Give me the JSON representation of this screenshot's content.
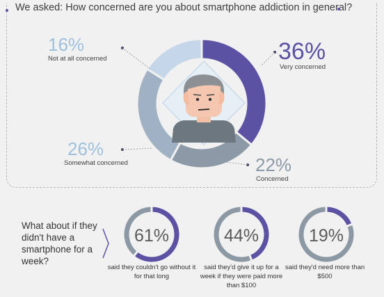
{
  "question": "We asked: How concerned are you about smartphone addiction in general?",
  "colors": {
    "very": "#5b52a4",
    "concerned": "#8b9aa6",
    "somewhat": "#9fb1c2",
    "not_at_all": "#c4d6e8",
    "mini_rest": "#8c99a4",
    "text_light": "#9fc0dc"
  },
  "labels": {
    "very": {
      "pct": "36%",
      "text": "Very concerned"
    },
    "concerned": {
      "pct": "22%",
      "text": "Concerned"
    },
    "somewhat": {
      "pct": "26%",
      "text": "Somewhat concerned"
    },
    "not_at_all": {
      "pct": "16%",
      "text": "Not at all concerned"
    }
  },
  "followup": {
    "question": "What about if they didn't have a smartphone for a week?",
    "items": [
      {
        "pct": "61%",
        "caption": "said they couldn't go without it for that long"
      },
      {
        "pct": "44%",
        "caption": "said they'd give it up for a week if they were paid more than $100"
      },
      {
        "pct": "19%",
        "caption": "said they'd need more than $500"
      }
    ]
  },
  "chart_data": [
    {
      "type": "pie",
      "title": "We asked: How concerned are you about smartphone addiction in general?",
      "categories": [
        "Very concerned",
        "Concerned",
        "Somewhat concerned",
        "Not at all concerned"
      ],
      "values": [
        36,
        22,
        26,
        16
      ]
    },
    {
      "type": "pie",
      "title": "What about if they didn't have a smartphone for a week?",
      "categories": [
        "said they couldn't go without it for that long",
        "said they'd give it up for a week if they were paid more than $100",
        "said they'd need more than $500"
      ],
      "values": [
        61,
        44,
        19
      ]
    }
  ]
}
